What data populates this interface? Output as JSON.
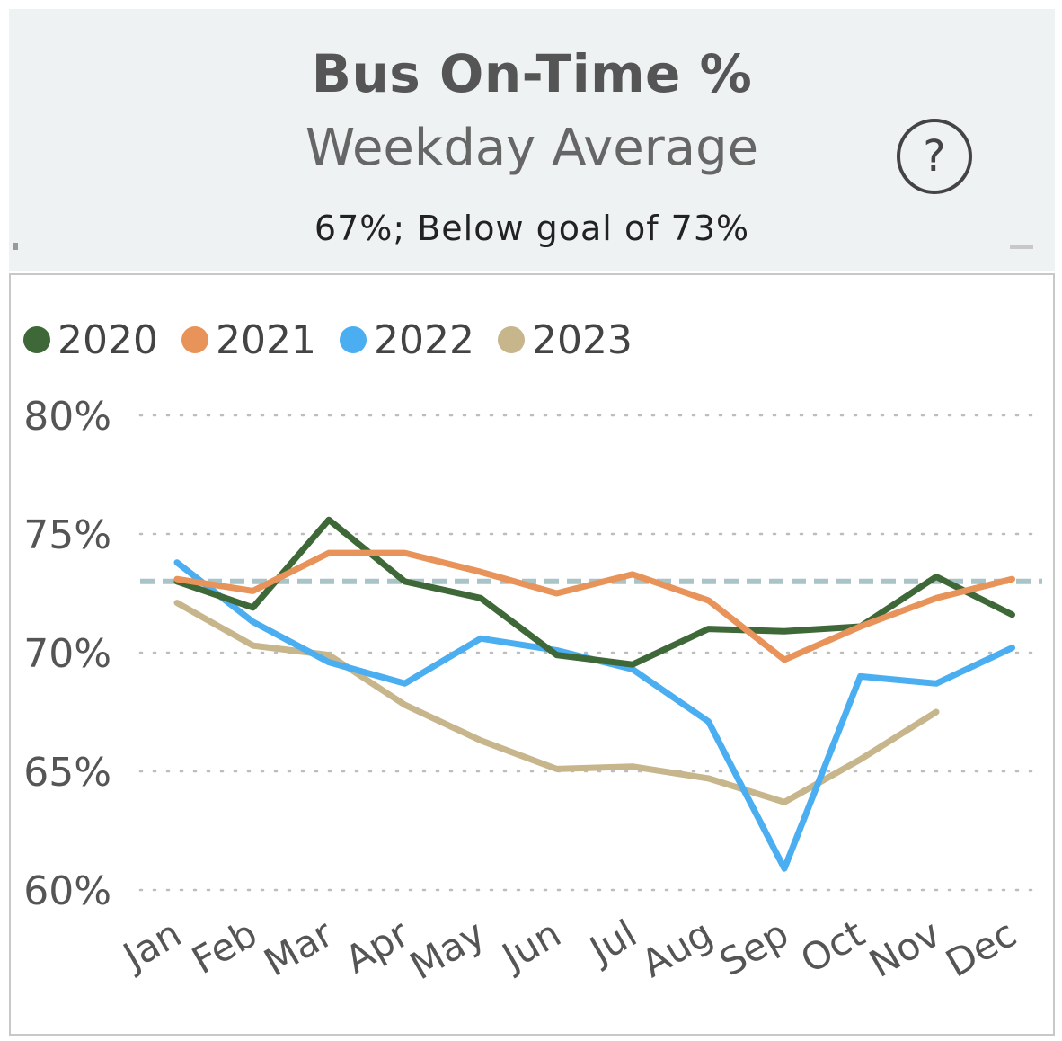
{
  "header": {
    "title": "Bus On-Time %",
    "subtitle": "Weekday Average",
    "status": "67%; Below goal of 73%",
    "help_icon": "question-circle-icon",
    "help_label": "?"
  },
  "colors": {
    "2020": "#3e6837",
    "2021": "#e8935a",
    "2022": "#4aaef0",
    "2023": "#c7b58b",
    "goal": "#a9c4c7",
    "header_bg": "#eef2f3"
  },
  "chart_data": {
    "type": "line",
    "x": [
      "Jan",
      "Feb",
      "Mar",
      "Apr",
      "May",
      "Jun",
      "Jul",
      "Aug",
      "Sep",
      "Oct",
      "Nov",
      "Dec"
    ],
    "series": [
      {
        "name": "2020",
        "values": [
          73.0,
          71.9,
          75.6,
          73.0,
          72.3,
          69.9,
          69.5,
          71.0,
          70.9,
          71.1,
          73.2,
          71.6
        ]
      },
      {
        "name": "2021",
        "values": [
          73.1,
          72.6,
          74.2,
          74.2,
          73.4,
          72.5,
          73.3,
          72.2,
          69.7,
          71.1,
          72.3,
          73.1
        ]
      },
      {
        "name": "2022",
        "values": [
          73.8,
          71.3,
          69.6,
          68.7,
          70.6,
          70.1,
          69.3,
          67.1,
          60.9,
          69.0,
          68.7,
          70.2
        ]
      },
      {
        "name": "2023",
        "values": [
          72.1,
          70.3,
          69.9,
          67.8,
          66.3,
          65.1,
          65.2,
          64.7,
          63.7,
          65.5,
          67.5,
          null
        ]
      }
    ],
    "goal": 73,
    "yticks": [
      "80%",
      "75%",
      "70%",
      "65%",
      "60%"
    ],
    "ytick_values": [
      80,
      75,
      70,
      65,
      60
    ],
    "ylim": [
      60,
      80
    ],
    "grid": true,
    "legend_position": "top-left"
  }
}
